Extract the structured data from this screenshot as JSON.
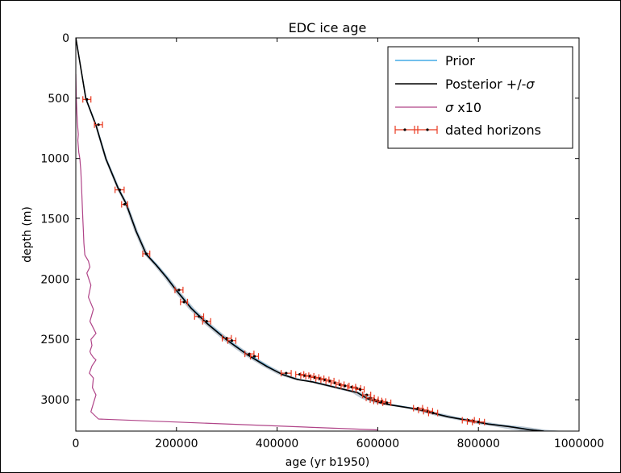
{
  "chart_data": {
    "type": "line",
    "title": "EDC ice age",
    "xlabel": "age (yr b1950)",
    "ylabel": "depth (m)",
    "xlim": [
      0,
      1000000
    ],
    "ylim": [
      3260,
      0
    ],
    "y_inverted": true,
    "xticks": [
      0,
      200000,
      400000,
      600000,
      800000,
      1000000
    ],
    "yticks": [
      0,
      500,
      1000,
      1500,
      2000,
      2500,
      3000
    ],
    "grid": false,
    "legend_position": "top-right",
    "legend": {
      "prior": "Prior",
      "posterior_prefix": "Posterior +/-",
      "sigma_prefix": "",
      "sigma_suffix": " x10",
      "dated": "dated horizons",
      "sigma_symbol": "σ"
    },
    "series": [
      {
        "name": "Prior",
        "color": "#1f9be0",
        "x": [
          0,
          20000,
          40000,
          60000,
          85000,
          100000,
          120000,
          140000,
          160000,
          180000,
          200000,
          230000,
          260000,
          300000,
          340000,
          380000,
          410000,
          440000,
          470000,
          500000,
          530000,
          560000,
          580000,
          610000,
          640000,
          670000,
          700000,
          740000,
          780000,
          820000,
          860000,
          900000,
          930000
        ],
        "y": [
          0,
          500,
          720,
          1000,
          1250,
          1370,
          1600,
          1790,
          1880,
          1980,
          2090,
          2240,
          2360,
          2500,
          2620,
          2720,
          2790,
          2830,
          2850,
          2880,
          2910,
          2940,
          2990,
          3030,
          3050,
          3070,
          3100,
          3140,
          3170,
          3200,
          3220,
          3245,
          3260
        ]
      },
      {
        "name": "Posterior +/-σ",
        "color": "#000000",
        "band_color": "#a9b8c6",
        "x": [
          0,
          20000,
          40000,
          60000,
          85000,
          100000,
          120000,
          140000,
          160000,
          180000,
          200000,
          230000,
          260000,
          300000,
          340000,
          380000,
          410000,
          440000,
          470000,
          500000,
          530000,
          560000,
          580000,
          610000,
          640000,
          670000,
          700000,
          740000,
          780000,
          820000,
          860000,
          900000,
          930000
        ],
        "y": [
          0,
          505,
          725,
          1005,
          1255,
          1375,
          1605,
          1795,
          1885,
          1985,
          2095,
          2245,
          2365,
          2505,
          2625,
          2725,
          2790,
          2832,
          2852,
          2882,
          2912,
          2942,
          2992,
          3032,
          3052,
          3072,
          3102,
          3142,
          3172,
          3202,
          3222,
          3248,
          3260
        ],
        "band_halfwidth": [
          0,
          1500,
          2000,
          2500,
          3000,
          3200,
          3500,
          4000,
          4500,
          5000,
          5500,
          6000,
          6500,
          7000,
          7500,
          8000,
          8500,
          9000,
          9500,
          10000,
          10500,
          11000,
          11500,
          12000,
          12500,
          13000,
          14000,
          16000,
          18000,
          22000,
          28000,
          34000,
          40000
        ]
      },
      {
        "name": "σ x10",
        "color": "#b04488",
        "x": [
          0,
          500,
          1000,
          2000,
          3000,
          4000,
          5000,
          4000,
          6000,
          8000,
          10000,
          11000,
          12000,
          13000,
          14000,
          15000,
          16000,
          18000,
          25000,
          28000,
          22000,
          30000,
          25000,
          35000,
          28000,
          40000,
          30000,
          32000,
          28000,
          30000,
          35000,
          40000,
          32000,
          27000,
          35000,
          33000,
          40000,
          35000,
          30000,
          45000,
          600000
        ],
        "y": [
          300,
          400,
          500,
          600,
          700,
          750,
          800,
          850,
          950,
          1000,
          1100,
          1200,
          1300,
          1400,
          1500,
          1600,
          1700,
          1800,
          1850,
          1900,
          1950,
          2050,
          2150,
          2250,
          2350,
          2450,
          2500,
          2550,
          2600,
          2620,
          2650,
          2670,
          2720,
          2780,
          2820,
          2900,
          2960,
          3030,
          3100,
          3160,
          3250
        ]
      }
    ],
    "dated_horizons": {
      "name": "dated horizons",
      "color": "#e8381f",
      "x": [
        22000,
        45000,
        87000,
        97000,
        140000,
        205000,
        215000,
        245000,
        260000,
        300000,
        310000,
        345000,
        355000,
        418000,
        445000,
        455000,
        465000,
        475000,
        485000,
        495000,
        505000,
        515000,
        525000,
        535000,
        548000,
        558000,
        565000,
        578000,
        585000,
        593000,
        600000,
        608000,
        618000,
        680000,
        690000,
        700000,
        710000,
        780000,
        790000,
        800000
      ],
      "y": [
        510,
        720,
        1260,
        1380,
        1790,
        2090,
        2190,
        2310,
        2350,
        2490,
        2510,
        2620,
        2640,
        2780,
        2790,
        2800,
        2805,
        2815,
        2825,
        2835,
        2845,
        2860,
        2875,
        2885,
        2895,
        2905,
        2915,
        2960,
        2985,
        3000,
        3010,
        3015,
        3025,
        3070,
        3085,
        3095,
        3110,
        3170,
        3180,
        3185
      ],
      "xerr": [
        8000,
        8000,
        9000,
        6000,
        7000,
        8000,
        7000,
        9000,
        8000,
        9000,
        8000,
        9000,
        8000,
        10000,
        8000,
        8000,
        8000,
        8000,
        8000,
        8000,
        8000,
        8000,
        8000,
        8000,
        8000,
        8000,
        8000,
        8000,
        8000,
        8000,
        8000,
        8000,
        8000,
        9000,
        9000,
        9000,
        9000,
        12000,
        12000,
        12000
      ]
    }
  }
}
